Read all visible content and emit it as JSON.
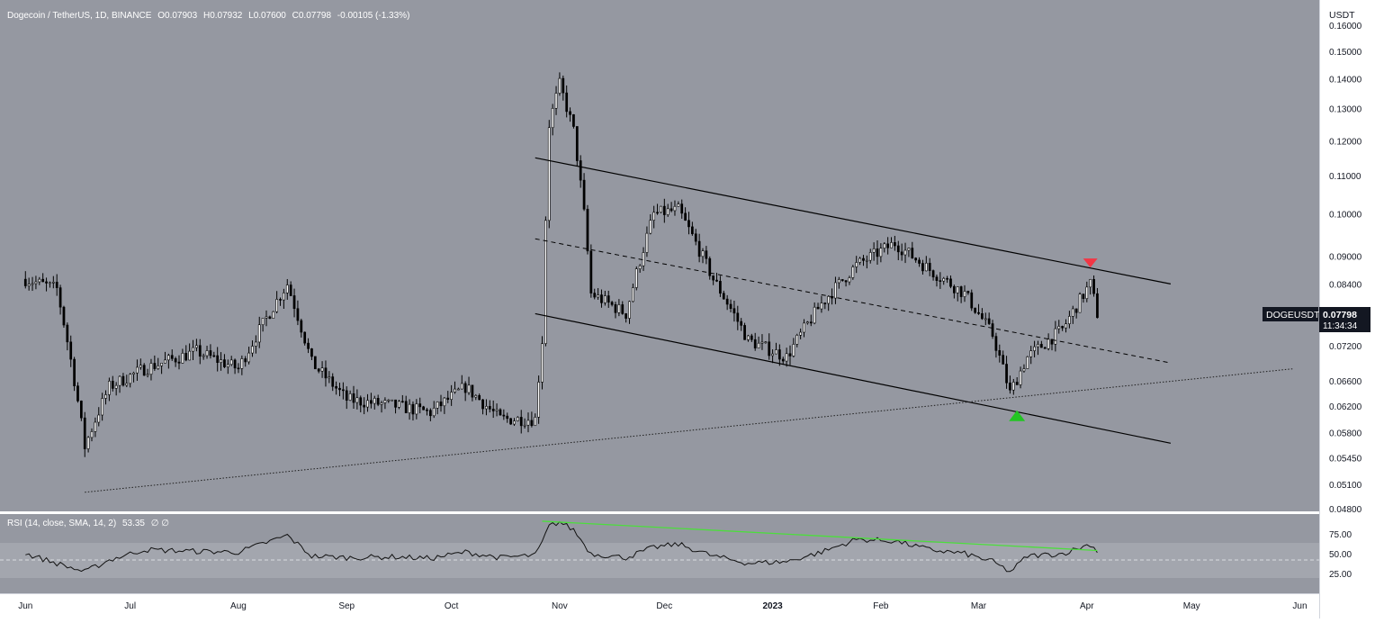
{
  "header": {
    "symbol": "Dogecoin / TetherUS, 1D, BINANCE",
    "open_label": "O",
    "open": "0.07903",
    "high_label": "H",
    "high": "0.07932",
    "low_label": "L",
    "low": "0.07600",
    "close_label": "C",
    "close": "0.07798",
    "change": "-0.00105 (-1.33%)"
  },
  "currency": "USDT",
  "price_tag": {
    "symbol": "DOGEUSDT",
    "price": "0.07798",
    "countdown": "11:34:34"
  },
  "rsi": {
    "legend": "RSI (14, close, SMA, 14, 2)",
    "value": "53.35",
    "extra": "∅ ∅",
    "ticks": [
      "75.00",
      "50.00",
      "25.00"
    ]
  },
  "colors": {
    "background": "#9598a1",
    "panel_band": "#a3a6ae",
    "candle": "#000000",
    "channel": "#000000",
    "support": "#1e1e1e",
    "rsi_line": "#111111",
    "rsi_trend": "#4cde3c",
    "marker_up": "#22c522",
    "marker_down": "#f23645",
    "axis_bg": "#ffffff",
    "axis_text": "#131722",
    "tag_bg": "#131722",
    "tag_text": "#ffffff"
  },
  "icons": {
    "resistance_marker": "red-down-triangle",
    "support_marker": "green-up-triangle"
  },
  "chart_data": [
    {
      "type": "candlestick",
      "title": "Dogecoin / TetherUS, 1D, BINANCE",
      "y_axis_ticks": [
        "0.16000",
        "0.15000",
        "0.14000",
        "0.13000",
        "0.12000",
        "0.11000",
        "0.10000",
        "0.09000",
        "0.08400",
        "0.07800",
        "0.07200",
        "0.06600",
        "0.06200",
        "0.05800",
        "0.05450",
        "0.05100",
        "0.04800"
      ],
      "x_axis_ticks": [
        "Jun",
        "Jul",
        "Aug",
        "Sep",
        "Oct",
        "Nov",
        "Dec",
        "2023",
        "Feb",
        "Mar",
        "Apr",
        "May",
        "Jun"
      ],
      "price_anchors": [
        {
          "date": "2022-06-01",
          "close": 0.085
        },
        {
          "date": "2022-06-10",
          "close": 0.083
        },
        {
          "date": "2022-06-18",
          "close": 0.056
        },
        {
          "date": "2022-06-25",
          "close": 0.065
        },
        {
          "date": "2022-07-05",
          "close": 0.068
        },
        {
          "date": "2022-07-20",
          "close": 0.071
        },
        {
          "date": "2022-08-01",
          "close": 0.068
        },
        {
          "date": "2022-08-15",
          "close": 0.084
        },
        {
          "date": "2022-08-22",
          "close": 0.069
        },
        {
          "date": "2022-09-01",
          "close": 0.063
        },
        {
          "date": "2022-09-15",
          "close": 0.062
        },
        {
          "date": "2022-09-25",
          "close": 0.061
        },
        {
          "date": "2022-10-05",
          "close": 0.065
        },
        {
          "date": "2022-10-15",
          "close": 0.06
        },
        {
          "date": "2022-10-25",
          "close": 0.06
        },
        {
          "date": "2022-10-27",
          "close": 0.073
        },
        {
          "date": "2022-10-29",
          "close": 0.125
        },
        {
          "date": "2022-11-01",
          "close": 0.138
        },
        {
          "date": "2022-11-05",
          "close": 0.123
        },
        {
          "date": "2022-11-08",
          "close": 0.1
        },
        {
          "date": "2022-11-10",
          "close": 0.082
        },
        {
          "date": "2022-11-20",
          "close": 0.078
        },
        {
          "date": "2022-11-28",
          "close": 0.1
        },
        {
          "date": "2022-12-05",
          "close": 0.101
        },
        {
          "date": "2022-12-15",
          "close": 0.085
        },
        {
          "date": "2022-12-25",
          "close": 0.073
        },
        {
          "date": "2023-01-05",
          "close": 0.07
        },
        {
          "date": "2023-01-15",
          "close": 0.08
        },
        {
          "date": "2023-01-25",
          "close": 0.088
        },
        {
          "date": "2023-02-05",
          "close": 0.093
        },
        {
          "date": "2023-02-15",
          "close": 0.087
        },
        {
          "date": "2023-02-25",
          "close": 0.082
        },
        {
          "date": "2023-03-05",
          "close": 0.074
        },
        {
          "date": "2023-03-10",
          "close": 0.064
        },
        {
          "date": "2023-03-15",
          "close": 0.07
        },
        {
          "date": "2023-03-25",
          "close": 0.075
        },
        {
          "date": "2023-04-02",
          "close": 0.084
        },
        {
          "date": "2023-04-04",
          "close": 0.078
        }
      ],
      "channel": {
        "upper": [
          {
            "date": "2022-10-25",
            "price": 0.115
          },
          {
            "date": "2023-04-25",
            "price": 0.084
          }
        ],
        "middle": [
          {
            "date": "2022-10-25",
            "price": 0.094
          },
          {
            "date": "2023-04-25",
            "price": 0.069
          }
        ],
        "lower": [
          {
            "date": "2022-10-25",
            "price": 0.078
          },
          {
            "date": "2023-04-25",
            "price": 0.0565
          }
        ]
      },
      "support_line": [
        {
          "date": "2022-06-18",
          "price": 0.05
        },
        {
          "date": "2023-05-30",
          "price": 0.068
        }
      ],
      "markers": [
        {
          "type": "resistance",
          "date": "2023-04-02",
          "price": 0.0885
        },
        {
          "type": "support",
          "date": "2023-03-12",
          "price": 0.0605
        }
      ]
    },
    {
      "type": "line",
      "title": "RSI (14, close, SMA, 14, 2)",
      "ylim": [
        0,
        100
      ],
      "y_axis_ticks": [
        75,
        50,
        25
      ],
      "band": [
        30,
        70
      ],
      "anchors": [
        {
          "date": "2022-06-01",
          "value": 50
        },
        {
          "date": "2022-06-18",
          "value": 27
        },
        {
          "date": "2022-06-25",
          "value": 42
        },
        {
          "date": "2022-07-05",
          "value": 55
        },
        {
          "date": "2022-07-20",
          "value": 53
        },
        {
          "date": "2022-08-01",
          "value": 52
        },
        {
          "date": "2022-08-15",
          "value": 73
        },
        {
          "date": "2022-08-22",
          "value": 47
        },
        {
          "date": "2022-09-01",
          "value": 45
        },
        {
          "date": "2022-09-15",
          "value": 46
        },
        {
          "date": "2022-09-25",
          "value": 44
        },
        {
          "date": "2022-10-05",
          "value": 52
        },
        {
          "date": "2022-10-15",
          "value": 45
        },
        {
          "date": "2022-10-25",
          "value": 48
        },
        {
          "date": "2022-10-27",
          "value": 64
        },
        {
          "date": "2022-10-29",
          "value": 85
        },
        {
          "date": "2022-11-01",
          "value": 90
        },
        {
          "date": "2022-11-05",
          "value": 80
        },
        {
          "date": "2022-11-10",
          "value": 50
        },
        {
          "date": "2022-11-20",
          "value": 45
        },
        {
          "date": "2022-11-28",
          "value": 58
        },
        {
          "date": "2022-12-05",
          "value": 62
        },
        {
          "date": "2022-12-15",
          "value": 47
        },
        {
          "date": "2022-12-25",
          "value": 38
        },
        {
          "date": "2023-01-05",
          "value": 40
        },
        {
          "date": "2023-01-15",
          "value": 52
        },
        {
          "date": "2023-01-25",
          "value": 68
        },
        {
          "date": "2023-02-05",
          "value": 66
        },
        {
          "date": "2023-02-15",
          "value": 55
        },
        {
          "date": "2023-02-25",
          "value": 50
        },
        {
          "date": "2023-03-05",
          "value": 40
        },
        {
          "date": "2023-03-10",
          "value": 27
        },
        {
          "date": "2023-03-15",
          "value": 47
        },
        {
          "date": "2023-03-25",
          "value": 50
        },
        {
          "date": "2023-04-02",
          "value": 62
        },
        {
          "date": "2023-04-04",
          "value": 53
        }
      ],
      "trendline": [
        {
          "date": "2022-10-27",
          "value": 91
        },
        {
          "date": "2023-04-04",
          "value": 54
        }
      ]
    }
  ]
}
